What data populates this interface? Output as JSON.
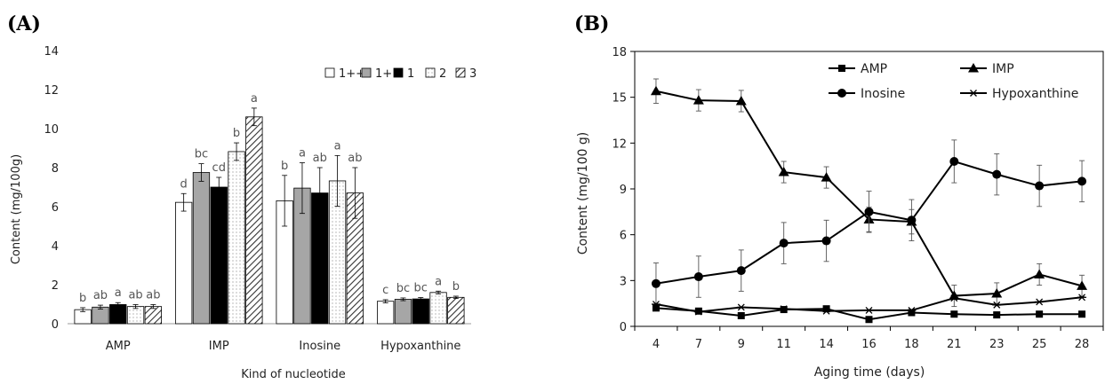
{
  "chart_data": [
    {
      "panel": "(A)",
      "type": "bar",
      "xlabel": "Kind of nucleotide",
      "ylabel": "Content (mg/100g)",
      "ylim": [
        0,
        14
      ],
      "yticks": [
        0,
        2,
        4,
        6,
        8,
        10,
        12,
        14
      ],
      "categories": [
        "AMP",
        "IMP",
        "Inosine",
        "Hypoxanthine"
      ],
      "legend_position": "top-right",
      "series": [
        {
          "name": "1++",
          "pattern": "white",
          "values": [
            0.72,
            6.22,
            6.3,
            1.15
          ],
          "errors": [
            0.1,
            0.45,
            1.3,
            0.08
          ],
          "letters": [
            "b",
            "d",
            "b",
            "c"
          ]
        },
        {
          "name": "1+",
          "pattern": "gray",
          "values": [
            0.85,
            7.75,
            6.95,
            1.25
          ],
          "errors": [
            0.1,
            0.45,
            1.3,
            0.07
          ],
          "letters": [
            "ab",
            "bc",
            "a",
            "bc"
          ]
        },
        {
          "name": "1",
          "pattern": "black",
          "values": [
            0.98,
            7.0,
            6.7,
            1.27
          ],
          "errors": [
            0.1,
            0.5,
            1.3,
            0.07
          ],
          "letters": [
            "a",
            "cd",
            "ab",
            "bc"
          ]
        },
        {
          "name": "2",
          "pattern": "dotted",
          "values": [
            0.88,
            8.82,
            7.32,
            1.6
          ],
          "errors": [
            0.1,
            0.45,
            1.3,
            0.07
          ],
          "letters": [
            "ab",
            "b",
            "a",
            "a"
          ]
        },
        {
          "name": "3",
          "pattern": "hatched",
          "values": [
            0.88,
            10.6,
            6.7,
            1.35
          ],
          "errors": [
            0.1,
            0.45,
            1.3,
            0.06
          ],
          "letters": [
            "ab",
            "a",
            "ab",
            "b"
          ]
        }
      ]
    },
    {
      "panel": "(B)",
      "type": "line",
      "xlabel": "Aging time (days)",
      "ylabel": "Content (mg/100 g)",
      "ylim": [
        0,
        18
      ],
      "yticks": [
        0,
        3,
        6,
        9,
        12,
        15,
        18
      ],
      "x": [
        4,
        7,
        9,
        11,
        14,
        16,
        18,
        21,
        23,
        25,
        28
      ],
      "legend_position": "top-right",
      "series": [
        {
          "name": "AMP",
          "marker": "square",
          "values": [
            1.2,
            1.0,
            0.7,
            1.1,
            1.15,
            0.45,
            0.9,
            0.8,
            0.75,
            0.8,
            0.8
          ],
          "errors": [
            0,
            0,
            0,
            0,
            0,
            0,
            0,
            0,
            0,
            0,
            0
          ]
        },
        {
          "name": "IMP",
          "marker": "triangle",
          "values": [
            15.4,
            14.8,
            14.75,
            10.1,
            9.75,
            7.0,
            6.85,
            2.0,
            2.15,
            3.4,
            2.65
          ],
          "errors": [
            0.8,
            0.7,
            0.7,
            0.7,
            0.7,
            0.8,
            0.8,
            0.7,
            0.7,
            0.7,
            0.7
          ]
        },
        {
          "name": "Inosine",
          "marker": "circle",
          "values": [
            2.8,
            3.25,
            3.65,
            5.45,
            5.6,
            7.5,
            6.95,
            10.8,
            9.95,
            9.2,
            9.5
          ],
          "errors": [
            1.35,
            1.35,
            1.35,
            1.35,
            1.35,
            1.35,
            1.35,
            1.4,
            1.35,
            1.35,
            1.35
          ]
        },
        {
          "name": "Hypoxanthine",
          "marker": "asterisk",
          "values": [
            1.45,
            0.95,
            1.25,
            1.15,
            1.0,
            1.05,
            1.05,
            1.85,
            1.4,
            1.6,
            1.9
          ],
          "errors": [
            0,
            0,
            0,
            0,
            0,
            0,
            0,
            0,
            0,
            0,
            0
          ]
        }
      ]
    }
  ]
}
